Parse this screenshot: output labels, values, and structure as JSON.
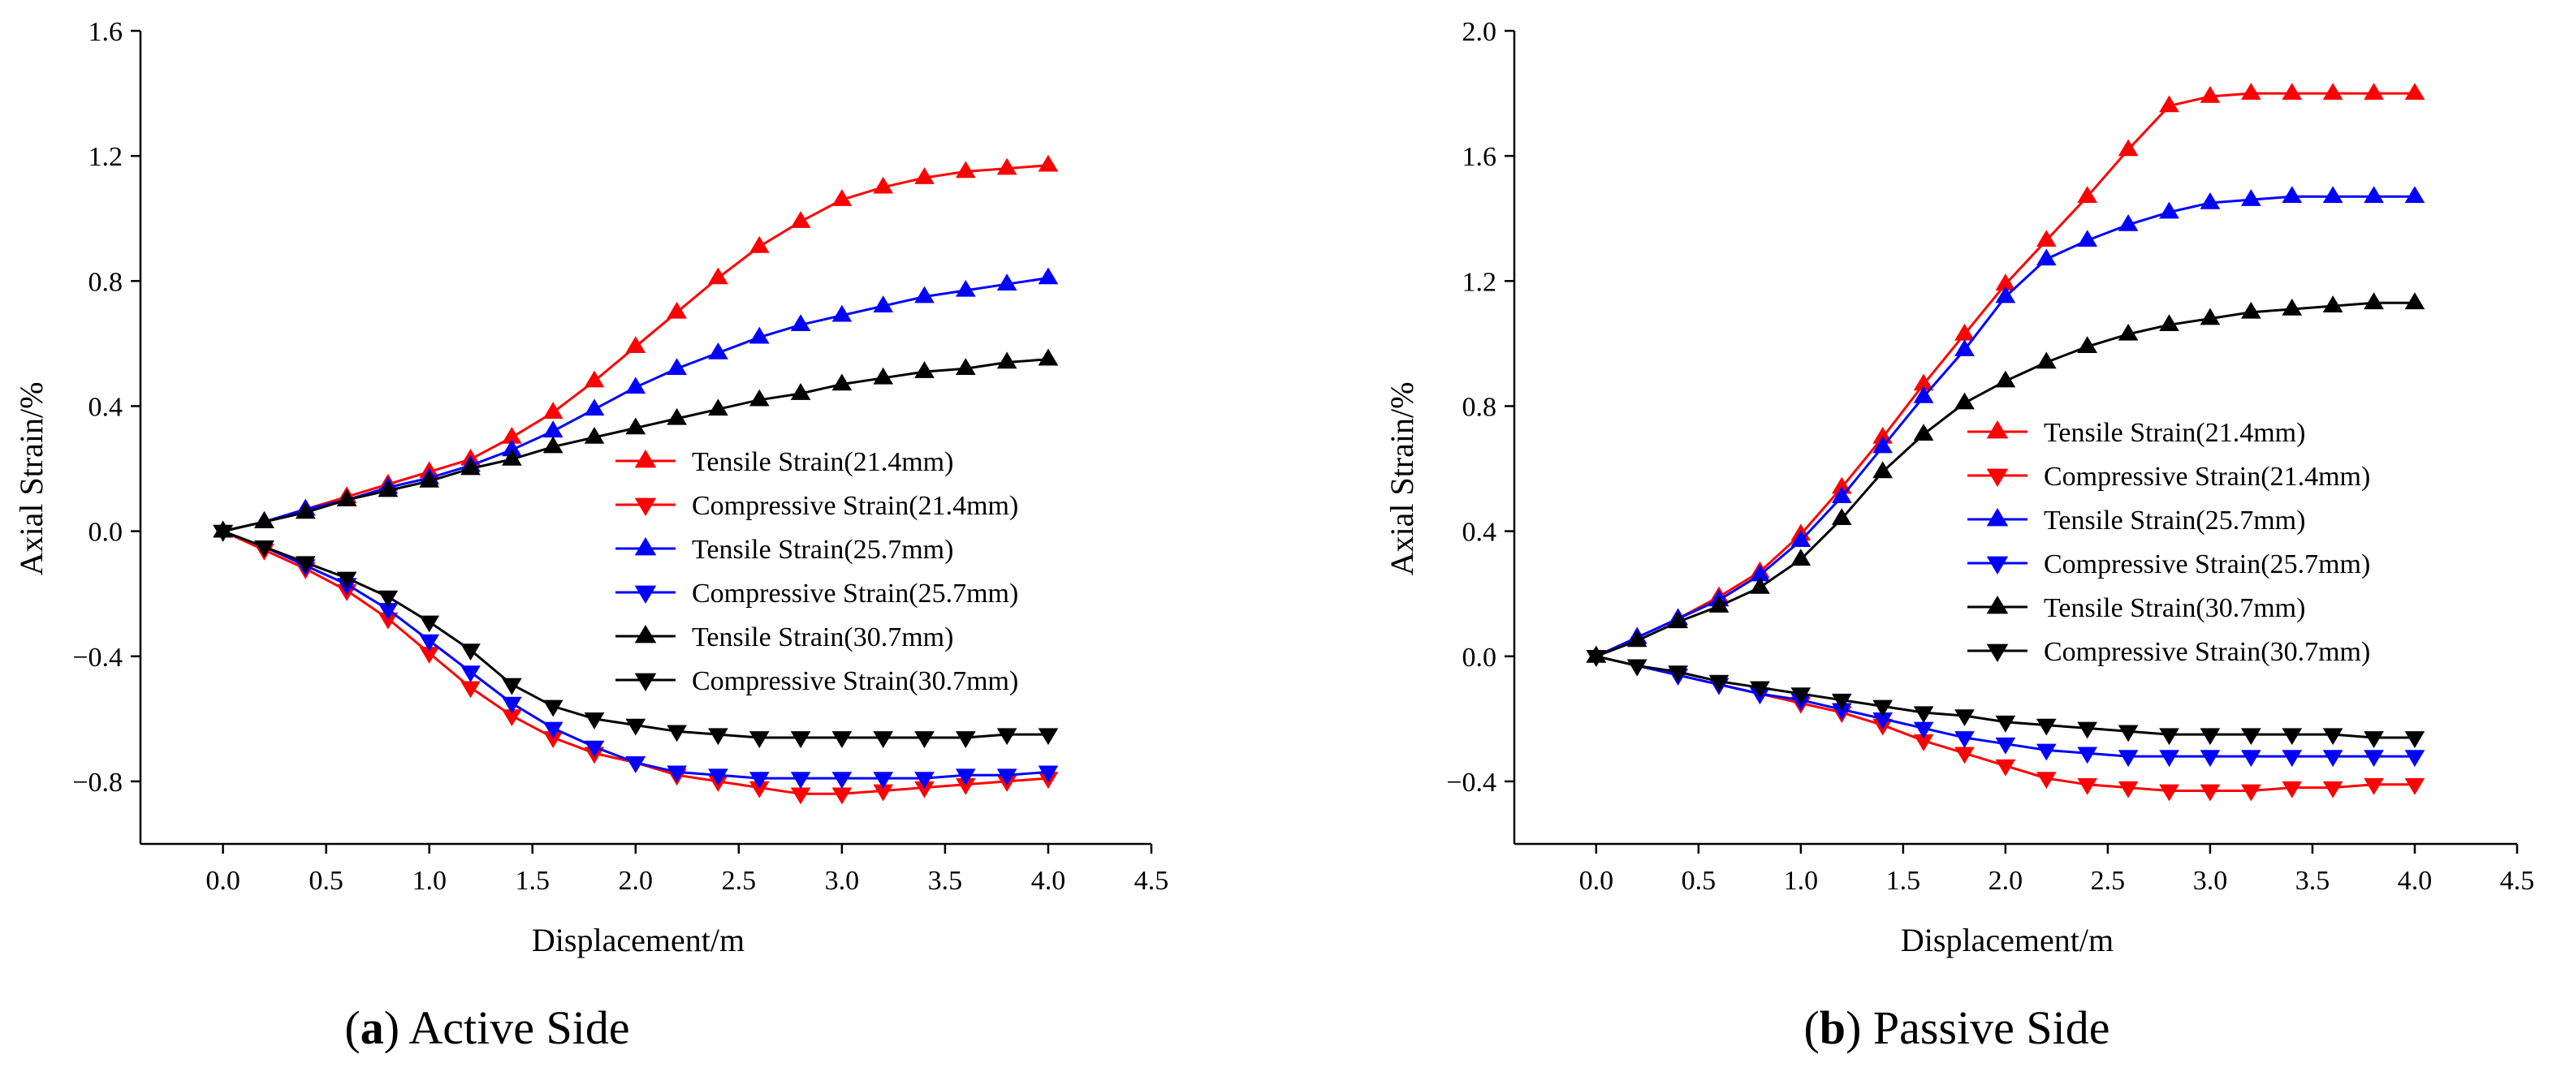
{
  "chart_data": [
    {
      "type": "line",
      "caption_letter": "a",
      "caption_text": "Active Side",
      "xlabel": "Displacement/m",
      "ylabel": "Axial Strain/%",
      "xlim": [
        -0.4,
        4.5
      ],
      "ylim": [
        -1.0,
        1.6
      ],
      "xticks": [
        0.0,
        0.5,
        1.0,
        1.5,
        2.0,
        2.5,
        3.0,
        3.5,
        4.0,
        4.5
      ],
      "yticks": [
        -0.8,
        -0.4,
        0.0,
        0.4,
        0.8,
        1.2,
        1.6
      ],
      "xtick_labels": [
        "0.0",
        "0.5",
        "1.0",
        "1.5",
        "2.0",
        "2.5",
        "3.0",
        "3.5",
        "4.0",
        "4.5"
      ],
      "ytick_labels": [
        "−0.8",
        "−0.4",
        "0.0",
        "0.4",
        "0.8",
        "1.2",
        "1.6"
      ],
      "grid": false,
      "legend_position": "center-right",
      "x": [
        0.0,
        0.2,
        0.4,
        0.6,
        0.8,
        1.0,
        1.2,
        1.4,
        1.6,
        1.8,
        2.0,
        2.2,
        2.4,
        2.6,
        2.8,
        3.0,
        3.2,
        3.4,
        3.6,
        3.8,
        4.0
      ],
      "series": [
        {
          "name": "Tensile Strain(21.4mm)",
          "color": "#ff0000",
          "marker": "triangle-up",
          "values": [
            0.0,
            0.03,
            0.07,
            0.11,
            0.15,
            0.19,
            0.23,
            0.3,
            0.38,
            0.48,
            0.59,
            0.7,
            0.81,
            0.91,
            0.99,
            1.06,
            1.1,
            1.13,
            1.15,
            1.16,
            1.17
          ]
        },
        {
          "name": "Compressive Strain(21.4mm)",
          "color": "#ff0000",
          "marker": "triangle-down",
          "values": [
            0.0,
            -0.06,
            -0.12,
            -0.19,
            -0.28,
            -0.39,
            -0.5,
            -0.59,
            -0.66,
            -0.71,
            -0.74,
            -0.78,
            -0.8,
            -0.82,
            -0.84,
            -0.84,
            -0.83,
            -0.82,
            -0.81,
            -0.8,
            -0.79
          ]
        },
        {
          "name": "Tensile Strain(25.7mm)",
          "color": "#0000ff",
          "marker": "triangle-up",
          "values": [
            0.0,
            0.03,
            0.07,
            0.1,
            0.14,
            0.17,
            0.21,
            0.26,
            0.32,
            0.39,
            0.46,
            0.52,
            0.57,
            0.62,
            0.66,
            0.69,
            0.72,
            0.75,
            0.77,
            0.79,
            0.81
          ]
        },
        {
          "name": "Compressive Strain(25.7mm)",
          "color": "#0000ff",
          "marker": "triangle-down",
          "values": [
            0.0,
            -0.05,
            -0.11,
            -0.17,
            -0.25,
            -0.35,
            -0.45,
            -0.55,
            -0.63,
            -0.69,
            -0.74,
            -0.77,
            -0.78,
            -0.79,
            -0.79,
            -0.79,
            -0.79,
            -0.79,
            -0.78,
            -0.78,
            -0.77
          ]
        },
        {
          "name": "Tensile Strain(30.7mm)",
          "color": "#000000",
          "marker": "triangle-up",
          "values": [
            0.0,
            0.03,
            0.06,
            0.1,
            0.13,
            0.16,
            0.2,
            0.23,
            0.27,
            0.3,
            0.33,
            0.36,
            0.39,
            0.42,
            0.44,
            0.47,
            0.49,
            0.51,
            0.52,
            0.54,
            0.55
          ]
        },
        {
          "name": "Compressive Strain(30.7mm)",
          "color": "#000000",
          "marker": "triangle-down",
          "values": [
            0.0,
            -0.05,
            -0.1,
            -0.15,
            -0.21,
            -0.29,
            -0.38,
            -0.49,
            -0.56,
            -0.6,
            -0.62,
            -0.64,
            -0.65,
            -0.66,
            -0.66,
            -0.66,
            -0.66,
            -0.66,
            -0.66,
            -0.65,
            -0.65
          ]
        }
      ]
    },
    {
      "type": "line",
      "caption_letter": "b",
      "caption_text": "Passive Side",
      "xlabel": "Displacement/m",
      "ylabel": "Axial Strain/%",
      "xlim": [
        -0.4,
        4.5
      ],
      "ylim": [
        -0.6,
        2.0
      ],
      "xticks": [
        0.0,
        0.5,
        1.0,
        1.5,
        2.0,
        2.5,
        3.0,
        3.5,
        4.0,
        4.5
      ],
      "yticks": [
        -0.4,
        0.0,
        0.4,
        0.8,
        1.2,
        1.6,
        2.0
      ],
      "xtick_labels": [
        "0.0",
        "0.5",
        "1.0",
        "1.5",
        "2.0",
        "2.5",
        "3.0",
        "3.5",
        "4.0",
        "4.5"
      ],
      "ytick_labels": [
        "−0.4",
        "0.0",
        "0.4",
        "0.8",
        "1.2",
        "1.6",
        "2.0"
      ],
      "grid": false,
      "legend_position": "center-right",
      "x": [
        0.0,
        0.2,
        0.4,
        0.6,
        0.8,
        1.0,
        1.2,
        1.4,
        1.6,
        1.8,
        2.0,
        2.2,
        2.4,
        2.6,
        2.8,
        3.0,
        3.2,
        3.4,
        3.6,
        3.8,
        4.0
      ],
      "series": [
        {
          "name": "Tensile Strain(21.4mm)",
          "color": "#ff0000",
          "marker": "triangle-up",
          "values": [
            0.0,
            0.06,
            0.12,
            0.19,
            0.27,
            0.39,
            0.54,
            0.7,
            0.87,
            1.03,
            1.19,
            1.33,
            1.47,
            1.62,
            1.76,
            1.79,
            1.8,
            1.8,
            1.8,
            1.8,
            1.8
          ]
        },
        {
          "name": "Compressive Strain(21.4mm)",
          "color": "#ff0000",
          "marker": "triangle-down",
          "values": [
            0.0,
            -0.03,
            -0.06,
            -0.09,
            -0.12,
            -0.15,
            -0.18,
            -0.22,
            -0.27,
            -0.31,
            -0.35,
            -0.39,
            -0.41,
            -0.42,
            -0.43,
            -0.43,
            -0.43,
            -0.42,
            -0.42,
            -0.41,
            -0.41
          ]
        },
        {
          "name": "Tensile Strain(25.7mm)",
          "color": "#0000ff",
          "marker": "triangle-up",
          "values": [
            0.0,
            0.06,
            0.12,
            0.18,
            0.26,
            0.37,
            0.51,
            0.67,
            0.83,
            0.98,
            1.15,
            1.27,
            1.33,
            1.38,
            1.42,
            1.45,
            1.46,
            1.47,
            1.47,
            1.47,
            1.47
          ]
        },
        {
          "name": "Compressive Strain(25.7mm)",
          "color": "#0000ff",
          "marker": "triangle-down",
          "values": [
            0.0,
            -0.03,
            -0.06,
            -0.09,
            -0.12,
            -0.14,
            -0.17,
            -0.2,
            -0.23,
            -0.26,
            -0.28,
            -0.3,
            -0.31,
            -0.32,
            -0.32,
            -0.32,
            -0.32,
            -0.32,
            -0.32,
            -0.32,
            -0.32
          ]
        },
        {
          "name": "Tensile Strain(30.7mm)",
          "color": "#000000",
          "marker": "triangle-up",
          "values": [
            0.0,
            0.05,
            0.11,
            0.16,
            0.22,
            0.31,
            0.44,
            0.59,
            0.71,
            0.81,
            0.88,
            0.94,
            0.99,
            1.03,
            1.06,
            1.08,
            1.1,
            1.11,
            1.12,
            1.13,
            1.13
          ]
        },
        {
          "name": "Compressive Strain(30.7mm)",
          "color": "#000000",
          "marker": "triangle-down",
          "values": [
            0.0,
            -0.03,
            -0.05,
            -0.08,
            -0.1,
            -0.12,
            -0.14,
            -0.16,
            -0.18,
            -0.19,
            -0.21,
            -0.22,
            -0.23,
            -0.24,
            -0.25,
            -0.25,
            -0.25,
            -0.25,
            -0.25,
            -0.26,
            -0.26
          ]
        }
      ]
    }
  ]
}
